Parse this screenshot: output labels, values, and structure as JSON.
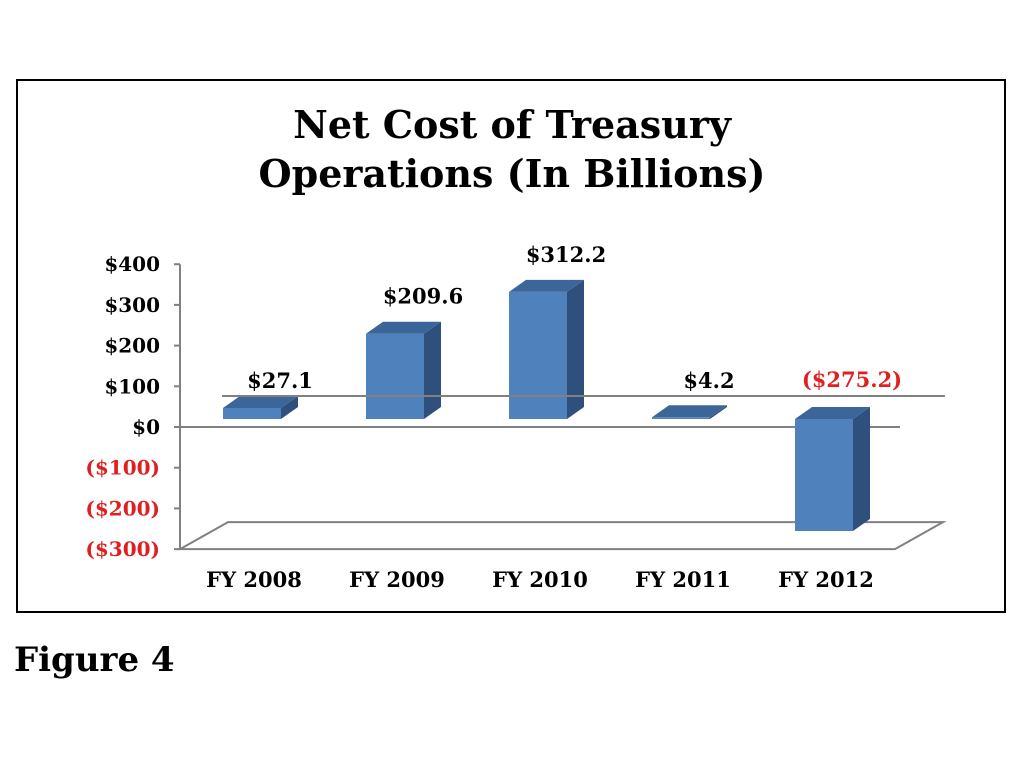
{
  "figure_caption": "Figure 4",
  "chart_data": {
    "type": "bar",
    "title_lines": [
      "Net Cost of Treasury",
      "Operations (In Billions)"
    ],
    "categories": [
      "FY 2008",
      "FY 2009",
      "FY 2010",
      "FY 2011",
      "FY 2012"
    ],
    "values": [
      27.1,
      209.6,
      312.2,
      4.2,
      -275.2
    ],
    "data_labels": [
      "$27.1",
      "$209.6",
      "$312.2",
      "$4.2",
      "($275.2)"
    ],
    "y_ticks": [
      400,
      300,
      200,
      100,
      0,
      -100,
      -200,
      -300
    ],
    "y_tick_labels": [
      "$400",
      "$300",
      "$200",
      "$100",
      "$0",
      "($100)",
      "($200)",
      "($300)"
    ],
    "ylim": [
      -300,
      400
    ],
    "xlabel": "",
    "ylabel": "",
    "legend": "none",
    "colors": {
      "bar_front": "#4f81bd",
      "bar_top": "#3c6699",
      "bar_side": "#2f4f7d",
      "negative_text": "#e02020",
      "positive_text": "#000000",
      "axis": "#808080"
    }
  }
}
